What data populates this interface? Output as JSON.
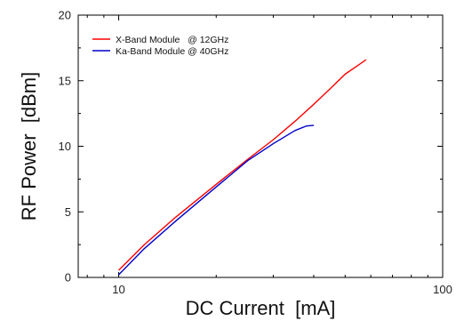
{
  "chart_data": {
    "type": "line",
    "title": "",
    "xlabel": "DC Current  [mA]",
    "ylabel": "RF Power  [dBm]",
    "xscale": "log",
    "xlim": [
      7.5,
      100
    ],
    "ylim": [
      0,
      20
    ],
    "x_ticks": [
      10,
      100
    ],
    "x_tick_labels": [
      "10",
      "100"
    ],
    "y_ticks": [
      0,
      5,
      10,
      15,
      20
    ],
    "y_tick_labels": [
      "0",
      "5",
      "10",
      "15",
      "20"
    ],
    "grid": false,
    "legend_position": "top-left",
    "series": [
      {
        "name": "X-Band Module   @ 12GHz",
        "color": "#ff0000",
        "x": [
          10,
          12,
          15,
          20,
          25,
          30,
          35,
          40,
          45,
          50,
          55,
          58
        ],
        "y": [
          0.55,
          2.5,
          4.6,
          7.1,
          9.0,
          10.5,
          11.9,
          13.2,
          14.4,
          15.5,
          16.2,
          16.6
        ]
      },
      {
        "name": "Ka-Band Module @ 40GHz",
        "color": "#0000cc",
        "x": [
          10,
          12,
          15,
          20,
          25,
          30,
          35,
          38,
          40
        ],
        "y": [
          0.2,
          2.2,
          4.3,
          6.9,
          8.9,
          10.2,
          11.2,
          11.55,
          11.6
        ]
      }
    ]
  }
}
